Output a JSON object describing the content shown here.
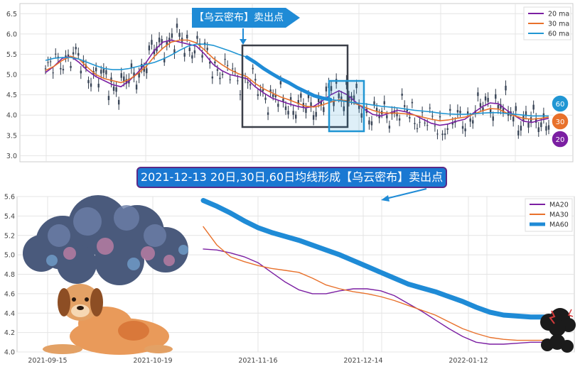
{
  "chart_data": [
    {
      "type": "candlestick",
      "title": "",
      "xlabel": "",
      "ylabel": "",
      "ylim": [
        2.85,
        6.75
      ],
      "yticks": [
        "3.0",
        "3.5",
        "4.0",
        "4.5",
        "5.0",
        "5.5",
        "6.0",
        "6.5"
      ],
      "grid": true,
      "legend_position": "top-right",
      "annotation": "【乌云密布】卖出点",
      "series": [
        {
          "name": "20 ma",
          "color": "#7b1fa2",
          "values": [
            5.05,
            5.2,
            5.4,
            5.45,
            5.3,
            5.1,
            4.95,
            4.85,
            4.75,
            4.7,
            4.85,
            5.05,
            5.3,
            5.6,
            5.8,
            5.85,
            5.8,
            5.75,
            5.7,
            5.5,
            5.25,
            5.1,
            5.0,
            4.95,
            4.9,
            4.7,
            4.55,
            4.42,
            4.35,
            4.28,
            4.22,
            4.18,
            4.22,
            4.35,
            4.5,
            4.6,
            4.5,
            4.32,
            4.15,
            4.02,
            3.98,
            4.05,
            4.12,
            4.08,
            4.0,
            3.9,
            3.8,
            3.75,
            3.78,
            3.85,
            3.9,
            4.05,
            4.2,
            4.3,
            4.28,
            4.12,
            3.98,
            3.85,
            3.82,
            3.88,
            3.92
          ]
        },
        {
          "name": "30 ma",
          "color": "#e8712b",
          "values": [
            5.1,
            5.2,
            5.35,
            5.45,
            5.38,
            5.18,
            5.0,
            4.9,
            4.85,
            4.8,
            4.88,
            5.02,
            5.2,
            5.45,
            5.65,
            5.8,
            5.85,
            5.85,
            5.78,
            5.6,
            5.4,
            5.25,
            5.12,
            5.02,
            4.95,
            4.78,
            4.65,
            4.55,
            4.45,
            4.38,
            4.3,
            4.22,
            4.2,
            4.25,
            4.32,
            4.38,
            4.35,
            4.28,
            4.2,
            4.12,
            4.06,
            4.05,
            4.05,
            4.03,
            4.0,
            3.95,
            3.9,
            3.86,
            3.88,
            3.92,
            3.95,
            4.02,
            4.1,
            4.16,
            4.15,
            4.05,
            3.98,
            3.92,
            3.9,
            3.92,
            3.95
          ]
        },
        {
          "name": "60 ma",
          "color": "#2196d3",
          "values": [
            5.35,
            5.4,
            5.42,
            5.42,
            5.38,
            5.3,
            5.22,
            5.15,
            5.12,
            5.12,
            5.15,
            5.2,
            5.25,
            5.3,
            5.38,
            5.48,
            5.6,
            5.7,
            5.75,
            5.75,
            5.72,
            5.65,
            5.58,
            5.5,
            5.43,
            5.3,
            5.15,
            5.02,
            4.9,
            4.8,
            4.68,
            4.58,
            4.48,
            4.42,
            4.38,
            4.36,
            4.33,
            4.3,
            4.28,
            4.25,
            4.22,
            4.2,
            4.18,
            4.15,
            4.12,
            4.1,
            4.08,
            4.05,
            4.03,
            4.02,
            4.02,
            4.03,
            4.05,
            4.06,
            4.06,
            4.04,
            4.02,
            4.0,
            3.98,
            3.98,
            3.98
          ]
        }
      ],
      "ma_badges": [
        "60",
        "30",
        "20"
      ]
    },
    {
      "type": "line",
      "title": "2021-12-13 20日,30日,60日均线形成【乌云密布】卖出点",
      "xlabel": "",
      "ylabel": "",
      "ylim": [
        4.0,
        5.6
      ],
      "yticks": [
        "4.0",
        "4.2",
        "4.4",
        "4.6",
        "4.8",
        "5.0",
        "5.2",
        "5.4",
        "5.6"
      ],
      "xticks": [
        "2021-09-15",
        "2021-10-19",
        "2021-11-16",
        "2021-12-14",
        "2022-01-12"
      ],
      "grid": true,
      "legend_position": "top-right",
      "series": [
        {
          "name": "MA20",
          "color": "#7b1fa2",
          "values": [
            5.06,
            5.05,
            5.02,
            4.98,
            4.92,
            4.82,
            4.72,
            4.64,
            4.6,
            4.6,
            4.63,
            4.65,
            4.65,
            4.63,
            4.58,
            4.5,
            4.42,
            4.33,
            4.24,
            4.16,
            4.1,
            4.08,
            4.08,
            4.09,
            4.1,
            4.1
          ]
        },
        {
          "name": "MA30",
          "color": "#e8712b",
          "values": [
            5.29,
            5.1,
            4.98,
            4.93,
            4.89,
            4.86,
            4.84,
            4.82,
            4.76,
            4.69,
            4.65,
            4.62,
            4.6,
            4.57,
            4.53,
            4.48,
            4.43,
            4.38,
            4.31,
            4.24,
            4.19,
            4.15,
            4.13,
            4.12,
            4.12,
            4.12
          ]
        },
        {
          "name": "MA60",
          "color": "#1f8bd6",
          "values": [
            5.56,
            5.5,
            5.43,
            5.35,
            5.28,
            5.23,
            5.19,
            5.15,
            5.1,
            5.05,
            5.0,
            4.94,
            4.88,
            4.82,
            4.76,
            4.7,
            4.66,
            4.62,
            4.57,
            4.52,
            4.46,
            4.41,
            4.38,
            4.37,
            4.36,
            4.36
          ]
        }
      ]
    }
  ],
  "icon_names": [
    "dark-cloud-icon",
    "dog-icon",
    "storm-cloud-icon"
  ]
}
